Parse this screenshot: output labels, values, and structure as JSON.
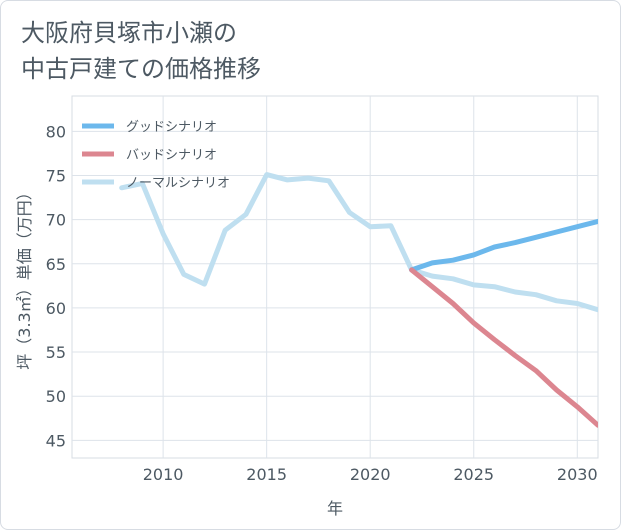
{
  "title_lines": [
    "大阪府貝塚市小瀬の",
    "中古戸建ての価格推移"
  ],
  "chart_data": {
    "type": "line",
    "xlabel": "年",
    "ylabel": "坪（3.3㎡）単価（万円）",
    "xlim": [
      2005.6,
      2031
    ],
    "ylim": [
      43,
      84
    ],
    "xticks": [
      2010,
      2015,
      2020,
      2025,
      2030
    ],
    "yticks": [
      45,
      50,
      55,
      60,
      65,
      70,
      75,
      80
    ],
    "grid": true,
    "legend_position": "top-left",
    "series": [
      {
        "name": "グッドシナリオ",
        "color": "#6cb8ec",
        "x": [
          2022,
          2023,
          2024,
          2025,
          2026,
          2027,
          2028,
          2029,
          2030,
          2031
        ],
        "y": [
          64.3,
          65.1,
          65.4,
          66.0,
          66.9,
          67.4,
          68.0,
          68.6,
          69.2,
          69.8
        ]
      },
      {
        "name": "バッドシナリオ",
        "color": "#dc8690",
        "x": [
          2022,
          2023,
          2024,
          2025,
          2026,
          2027,
          2028,
          2029,
          2030,
          2031
        ],
        "y": [
          64.3,
          62.4,
          60.5,
          58.3,
          56.4,
          54.6,
          52.9,
          50.7,
          48.8,
          46.7
        ]
      },
      {
        "name": "ノーマルシナリオ",
        "color": "#bfdff0",
        "x": [
          2008,
          2009,
          2010,
          2011,
          2012,
          2013,
          2014,
          2015,
          2016,
          2017,
          2018,
          2019,
          2020,
          2021,
          2022,
          2023,
          2024,
          2025,
          2026,
          2027,
          2028,
          2029,
          2030,
          2031
        ],
        "y": [
          73.6,
          74.1,
          68.4,
          63.8,
          62.7,
          68.8,
          70.6,
          75.1,
          74.5,
          74.7,
          74.4,
          70.8,
          69.2,
          69.3,
          64.3,
          63.6,
          63.3,
          62.6,
          62.4,
          61.8,
          61.5,
          60.8,
          60.5,
          59.8
        ]
      }
    ]
  }
}
